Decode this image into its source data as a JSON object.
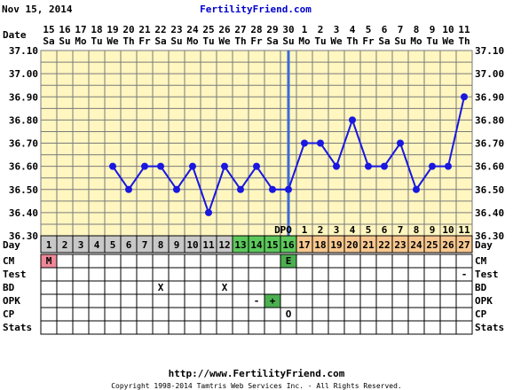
{
  "header": {
    "date": "Nov 15, 2014",
    "site": "FertilityFriend.com"
  },
  "footer": {
    "url": "http://www.FertilityFriend.com",
    "copyright": "Copyright 1998-2014 Tamtris Web Services Inc. - All Rights Reserved."
  },
  "row_labels": {
    "date": "Date",
    "day": "Day",
    "cm": "CM",
    "test": "Test",
    "bd": "BD",
    "opk": "OPK",
    "cp": "CP",
    "stats": "Stats"
  },
  "dpo_label": "DPO",
  "colors": {
    "chart_bg": "#fff6c0",
    "grid": "#7a7a7a",
    "line": "#1818e0",
    "coverline": "#3a6ad8",
    "day_gray": "#c8c8c8",
    "day_green": "#5cc85c",
    "day_orange": "#f7c890",
    "cm_menstrual": "#ee8899",
    "cm_egg_white": "#4caf50",
    "opk_positive": "#4caf50"
  },
  "chart_data": {
    "type": "line",
    "title": "",
    "xlabel": "Date",
    "ylabel": "",
    "ylim": [
      36.3,
      37.1
    ],
    "grid": true,
    "yticks": [
      "37.10",
      "37.00",
      "36.90",
      "36.80",
      "36.70",
      "36.60",
      "36.50",
      "36.40",
      "36.30"
    ],
    "dates": [
      "15",
      "16",
      "17",
      "18",
      "19",
      "20",
      "21",
      "22",
      "23",
      "24",
      "25",
      "26",
      "27",
      "28",
      "29",
      "30",
      "1",
      "2",
      "3",
      "4",
      "5",
      "6",
      "7",
      "8",
      "9",
      "10",
      "11"
    ],
    "weekdays": [
      "Sa",
      "Su",
      "Mo",
      "Tu",
      "We",
      "Th",
      "Fr",
      "Sa",
      "Su",
      "Mo",
      "Tu",
      "We",
      "Th",
      "Fr",
      "Sa",
      "Su",
      "Mo",
      "Tu",
      "We",
      "Th",
      "Fr",
      "Sa",
      "Su",
      "Mo",
      "Tu",
      "We",
      "Th"
    ],
    "days": [
      "1",
      "2",
      "3",
      "4",
      "5",
      "6",
      "7",
      "8",
      "9",
      "10",
      "11",
      "12",
      "13",
      "14",
      "15",
      "16",
      "17",
      "18",
      "19",
      "20",
      "21",
      "22",
      "23",
      "24",
      "25",
      "26",
      "27"
    ],
    "day_colors": [
      "gray",
      "gray",
      "gray",
      "gray",
      "gray",
      "gray",
      "gray",
      "gray",
      "gray",
      "gray",
      "gray",
      "gray",
      "green",
      "green",
      "green",
      "green",
      "orange",
      "orange",
      "orange",
      "orange",
      "orange",
      "orange",
      "orange",
      "orange",
      "orange",
      "orange",
      "orange"
    ],
    "dpo": [
      "",
      "",
      "",
      "",
      "",
      "",
      "",
      "",
      "",
      "",
      "",
      "",
      "",
      "",
      "",
      "DPO",
      "1",
      "2",
      "3",
      "4",
      "5",
      "6",
      "7",
      "8",
      "9",
      "10",
      "11"
    ],
    "temps": [
      null,
      null,
      null,
      null,
      36.6,
      36.5,
      36.6,
      36.6,
      36.5,
      36.6,
      36.4,
      36.6,
      36.5,
      36.6,
      36.5,
      36.5,
      36.7,
      36.7,
      36.6,
      36.8,
      36.6,
      36.6,
      36.7,
      36.5,
      36.6,
      36.6,
      36.9
    ],
    "coverline_after_day": 16,
    "cm": [
      "M",
      "",
      "",
      "",
      "",
      "",
      "",
      "",
      "",
      "",
      "",
      "",
      "",
      "",
      "",
      "E",
      "",
      "",
      "",
      "",
      "",
      "",
      "",
      "",
      "",
      "",
      ""
    ],
    "test": [
      "",
      "",
      "",
      "",
      "",
      "",
      "",
      "",
      "",
      "",
      "",
      "",
      "",
      "",
      "",
      "",
      "",
      "",
      "",
      "",
      "",
      "",
      "",
      "",
      "",
      "",
      "-"
    ],
    "bd": [
      "",
      "",
      "",
      "",
      "",
      "",
      "",
      "X",
      "",
      "",
      "",
      "X",
      "",
      "",
      "",
      "",
      "",
      "",
      "",
      "",
      "",
      "",
      "",
      "",
      "",
      "",
      ""
    ],
    "opk": [
      "",
      "",
      "",
      "",
      "",
      "",
      "",
      "",
      "",
      "",
      "",
      "",
      "",
      "-",
      "+",
      "",
      "",
      "",
      "",
      "",
      "",
      "",
      "",
      "",
      "",
      "",
      ""
    ],
    "cp": [
      "",
      "",
      "",
      "",
      "",
      "",
      "",
      "",
      "",
      "",
      "",
      "",
      "",
      "",
      "",
      "O",
      "",
      "",
      "",
      "",
      "",
      "",
      "",
      "",
      "",
      "",
      ""
    ],
    "stats": [
      "",
      "",
      "",
      "",
      "",
      "",
      "",
      "",
      "",
      "",
      "",
      "",
      "",
      "",
      "",
      "",
      "",
      "",
      "",
      "",
      "",
      "",
      "",
      "",
      "",
      "",
      ""
    ]
  }
}
